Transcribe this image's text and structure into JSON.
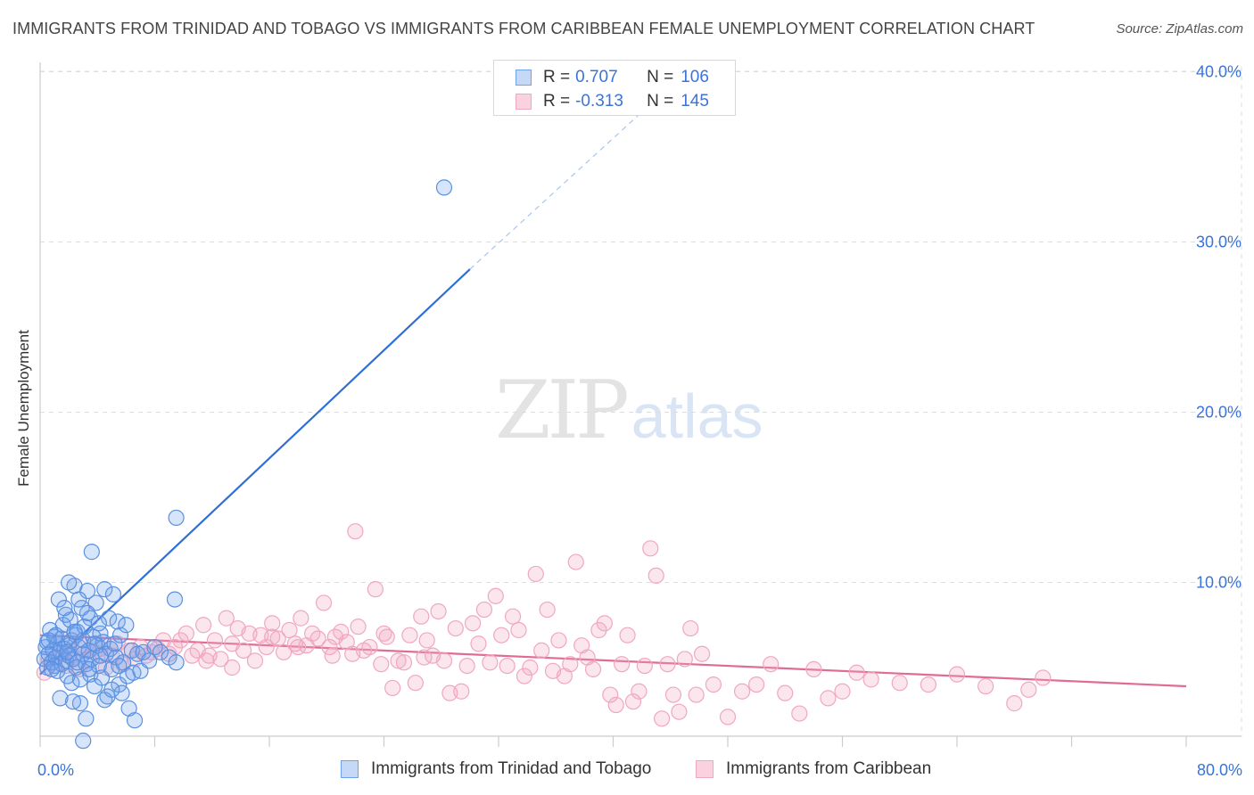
{
  "title": "IMMIGRANTS FROM TRINIDAD AND TOBAGO VS IMMIGRANTS FROM CARIBBEAN FEMALE UNEMPLOYMENT CORRELATION CHART",
  "source": "Source: ZipAtlas.com",
  "watermark": {
    "zip": "ZIP",
    "atlas": "atlas"
  },
  "legend": {
    "r_label": "R =",
    "n_label": "N =",
    "rows": [
      {
        "r": "0.707",
        "n": "106"
      },
      {
        "r": "-0.313",
        "n": "145"
      }
    ]
  },
  "chart_data": {
    "type": "scatter",
    "title": "IMMIGRANTS FROM TRINIDAD AND TOBAGO VS IMMIGRANTS FROM CARIBBEAN FEMALE UNEMPLOYMENT CORRELATION CHART",
    "xlabel": "",
    "ylabel": "Female Unemployment",
    "xlim": [
      0,
      80
    ],
    "ylim": [
      0,
      42
    ],
    "x_tick_labels": [
      "0.0%",
      "80.0%"
    ],
    "y_ticks": [
      10,
      20,
      30,
      40
    ],
    "y_tick_labels": [
      "10.0%",
      "20.0%",
      "30.0%",
      "40.0%"
    ],
    "grid": true,
    "legend_position": "top-center",
    "colors": {
      "series1": "#6fa2ec",
      "series2": "#f0a7c0",
      "line1": "#2e6fd6",
      "line2": "#e06b96"
    },
    "series": [
      {
        "name": "Immigrants from Trinidad and Tobago",
        "trend": {
          "x0": 0,
          "y0": 4.6,
          "x1": 30,
          "y1": 28.4,
          "dashed_to_x": 43,
          "dashed_to_y": 38.4
        },
        "points": [
          [
            0.3,
            5.5
          ],
          [
            0.4,
            6.2
          ],
          [
            0.5,
            5.0
          ],
          [
            0.5,
            6.5
          ],
          [
            0.6,
            5.8
          ],
          [
            0.7,
            7.2
          ],
          [
            0.8,
            5.3
          ],
          [
            0.9,
            6.0
          ],
          [
            1.0,
            6.8
          ],
          [
            1.0,
            5.1
          ],
          [
            1.1,
            5.6
          ],
          [
            1.2,
            6.4
          ],
          [
            1.2,
            4.8
          ],
          [
            1.3,
            9.0
          ],
          [
            1.4,
            5.9
          ],
          [
            1.5,
            6.7
          ],
          [
            1.5,
            5.2
          ],
          [
            1.6,
            7.5
          ],
          [
            1.7,
            6.1
          ],
          [
            1.8,
            5.4
          ],
          [
            1.8,
            8.1
          ],
          [
            1.9,
            4.5
          ],
          [
            2.0,
            6.3
          ],
          [
            2.0,
            5.7
          ],
          [
            2.1,
            7.8
          ],
          [
            2.2,
            6.6
          ],
          [
            2.2,
            4.1
          ],
          [
            2.3,
            5.5
          ],
          [
            2.4,
            9.8
          ],
          [
            2.5,
            6.9
          ],
          [
            2.5,
            5.0
          ],
          [
            2.6,
            7.1
          ],
          [
            2.7,
            6.2
          ],
          [
            2.8,
            4.3
          ],
          [
            2.9,
            8.5
          ],
          [
            3.0,
            5.8
          ],
          [
            3.0,
            6.6
          ],
          [
            3.1,
            7.4
          ],
          [
            3.2,
            5.2
          ],
          [
            3.3,
            9.5
          ],
          [
            3.4,
            6.0
          ],
          [
            3.5,
            4.6
          ],
          [
            3.5,
            7.9
          ],
          [
            3.6,
            5.5
          ],
          [
            3.7,
            6.8
          ],
          [
            3.8,
            3.9
          ],
          [
            3.9,
            8.8
          ],
          [
            4.0,
            6.3
          ],
          [
            4.1,
            5.1
          ],
          [
            4.2,
            7.0
          ],
          [
            4.3,
            4.4
          ],
          [
            4.4,
            6.5
          ],
          [
            4.5,
            9.6
          ],
          [
            4.6,
            5.8
          ],
          [
            4.7,
            3.3
          ],
          [
            4.8,
            7.9
          ],
          [
            4.9,
            6.1
          ],
          [
            5.0,
            4.9
          ],
          [
            5.1,
            9.3
          ],
          [
            5.2,
            6.4
          ],
          [
            5.3,
            5.6
          ],
          [
            5.4,
            7.7
          ],
          [
            5.5,
            4.0
          ],
          [
            5.6,
            6.9
          ],
          [
            5.7,
            3.5
          ],
          [
            5.8,
            5.3
          ],
          [
            6.0,
            7.5
          ],
          [
            6.1,
            4.5
          ],
          [
            6.2,
            2.6
          ],
          [
            6.4,
            6.0
          ],
          [
            6.5,
            4.7
          ],
          [
            6.6,
            1.9
          ],
          [
            6.8,
            5.8
          ],
          [
            7.0,
            4.8
          ],
          [
            7.2,
            5.9
          ],
          [
            7.6,
            5.4
          ],
          [
            8.0,
            6.2
          ],
          [
            8.4,
            5.9
          ],
          [
            9.0,
            5.6
          ],
          [
            9.4,
            9.0
          ],
          [
            9.5,
            5.3
          ],
          [
            9.5,
            13.8
          ],
          [
            3.6,
            11.8
          ],
          [
            3.2,
            2.0
          ],
          [
            2.8,
            2.9
          ],
          [
            3.0,
            0.7
          ],
          [
            2.3,
            3.0
          ],
          [
            4.5,
            3.1
          ],
          [
            5.0,
            3.7
          ],
          [
            1.4,
            3.2
          ],
          [
            2.0,
            10.0
          ],
          [
            2.7,
            9.0
          ],
          [
            1.7,
            8.5
          ],
          [
            3.8,
            6.4
          ],
          [
            0.8,
            4.9
          ],
          [
            1.1,
            6.9
          ],
          [
            2.4,
            7.1
          ],
          [
            3.3,
            8.2
          ],
          [
            4.1,
            7.6
          ],
          [
            0.6,
            6.6
          ],
          [
            1.9,
            5.9
          ],
          [
            2.6,
            5.3
          ],
          [
            3.4,
            4.9
          ],
          [
            4.2,
            5.7
          ],
          [
            5.5,
            5.1
          ],
          [
            28.2,
            33.2
          ]
        ]
      },
      {
        "name": "Immigrants from Caribbean",
        "trend": {
          "x0": 0,
          "y0": 6.9,
          "x1": 80,
          "y1": 3.9
        },
        "points": [
          [
            0.3,
            4.7
          ],
          [
            0.6,
            5.5
          ],
          [
            0.9,
            5.3
          ],
          [
            1.2,
            6.4
          ],
          [
            1.5,
            5.8
          ],
          [
            1.8,
            5.1
          ],
          [
            2.1,
            6.0
          ],
          [
            2.4,
            5.6
          ],
          [
            2.7,
            4.9
          ],
          [
            3.0,
            6.3
          ],
          [
            3.4,
            5.4
          ],
          [
            3.8,
            5.9
          ],
          [
            4.2,
            6.1
          ],
          [
            4.6,
            5.0
          ],
          [
            5.0,
            5.7
          ],
          [
            5.4,
            6.4
          ],
          [
            5.8,
            5.2
          ],
          [
            6.2,
            6.0
          ],
          [
            6.6,
            5.5
          ],
          [
            7.0,
            6.2
          ],
          [
            7.4,
            5.7
          ],
          [
            7.8,
            5.9
          ],
          [
            8.2,
            6.1
          ],
          [
            8.6,
            6.6
          ],
          [
            9.0,
            5.8
          ],
          [
            9.4,
            6.2
          ],
          [
            9.8,
            6.6
          ],
          [
            10.2,
            7.0
          ],
          [
            10.6,
            5.7
          ],
          [
            11.0,
            6.0
          ],
          [
            11.4,
            7.5
          ],
          [
            11.8,
            5.7
          ],
          [
            12.2,
            6.6
          ],
          [
            12.6,
            5.5
          ],
          [
            13.0,
            7.9
          ],
          [
            13.4,
            6.4
          ],
          [
            13.8,
            7.3
          ],
          [
            14.2,
            6.0
          ],
          [
            14.6,
            7.0
          ],
          [
            15.0,
            5.4
          ],
          [
            15.4,
            6.9
          ],
          [
            15.8,
            6.2
          ],
          [
            16.2,
            7.6
          ],
          [
            16.6,
            6.7
          ],
          [
            17.0,
            5.9
          ],
          [
            17.4,
            7.2
          ],
          [
            17.8,
            6.4
          ],
          [
            18.2,
            7.9
          ],
          [
            18.6,
            6.3
          ],
          [
            19.0,
            7.0
          ],
          [
            19.4,
            6.7
          ],
          [
            19.8,
            8.8
          ],
          [
            20.2,
            6.2
          ],
          [
            20.6,
            6.8
          ],
          [
            21.0,
            7.1
          ],
          [
            21.4,
            6.5
          ],
          [
            21.8,
            5.8
          ],
          [
            22.2,
            7.4
          ],
          [
            22.6,
            6.0
          ],
          [
            23.0,
            6.2
          ],
          [
            23.4,
            9.6
          ],
          [
            23.8,
            5.2
          ],
          [
            24.2,
            6.8
          ],
          [
            24.6,
            3.8
          ],
          [
            25.0,
            5.4
          ],
          [
            25.4,
            5.3
          ],
          [
            25.8,
            6.9
          ],
          [
            26.2,
            4.1
          ],
          [
            26.6,
            8.0
          ],
          [
            27.0,
            6.6
          ],
          [
            27.4,
            5.7
          ],
          [
            27.8,
            8.3
          ],
          [
            28.2,
            5.4
          ],
          [
            28.6,
            3.5
          ],
          [
            29.0,
            7.3
          ],
          [
            29.4,
            3.6
          ],
          [
            29.8,
            5.1
          ],
          [
            30.2,
            7.6
          ],
          [
            30.6,
            6.4
          ],
          [
            31.0,
            8.4
          ],
          [
            31.4,
            5.3
          ],
          [
            31.8,
            9.2
          ],
          [
            32.2,
            6.9
          ],
          [
            32.6,
            5.1
          ],
          [
            33.0,
            8.0
          ],
          [
            33.4,
            7.2
          ],
          [
            33.8,
            4.5
          ],
          [
            34.2,
            5.0
          ],
          [
            34.6,
            10.5
          ],
          [
            35.0,
            6.0
          ],
          [
            35.4,
            8.4
          ],
          [
            35.8,
            4.8
          ],
          [
            36.2,
            6.6
          ],
          [
            36.6,
            4.5
          ],
          [
            37.0,
            5.2
          ],
          [
            37.4,
            11.2
          ],
          [
            37.8,
            6.3
          ],
          [
            38.2,
            5.6
          ],
          [
            38.6,
            4.9
          ],
          [
            39.0,
            7.2
          ],
          [
            39.4,
            7.6
          ],
          [
            39.8,
            3.4
          ],
          [
            40.2,
            2.8
          ],
          [
            40.6,
            5.2
          ],
          [
            41.0,
            6.9
          ],
          [
            41.4,
            3.0
          ],
          [
            41.8,
            3.6
          ],
          [
            42.2,
            5.1
          ],
          [
            42.6,
            12.0
          ],
          [
            43.0,
            10.4
          ],
          [
            43.4,
            2.0
          ],
          [
            43.8,
            5.2
          ],
          [
            44.2,
            3.4
          ],
          [
            44.6,
            2.4
          ],
          [
            45.0,
            5.5
          ],
          [
            45.4,
            7.3
          ],
          [
            45.8,
            3.4
          ],
          [
            46.2,
            5.8
          ],
          [
            47.0,
            4.0
          ],
          [
            48.0,
            2.1
          ],
          [
            49.0,
            3.6
          ],
          [
            50.0,
            4.0
          ],
          [
            51.0,
            5.2
          ],
          [
            52.0,
            3.5
          ],
          [
            53.0,
            2.3
          ],
          [
            54.0,
            4.9
          ],
          [
            55.0,
            3.2
          ],
          [
            56.0,
            3.6
          ],
          [
            57.0,
            4.7
          ],
          [
            58.0,
            4.3
          ],
          [
            60.0,
            4.1
          ],
          [
            62.0,
            4.0
          ],
          [
            64.0,
            4.6
          ],
          [
            66.0,
            3.9
          ],
          [
            68.0,
            2.9
          ],
          [
            69.0,
            3.7
          ],
          [
            70.0,
            4.4
          ],
          [
            22.0,
            13.0
          ],
          [
            11.6,
            5.4
          ],
          [
            13.4,
            5.0
          ],
          [
            16.2,
            6.8
          ],
          [
            18.0,
            6.2
          ],
          [
            20.4,
            5.7
          ],
          [
            24.0,
            7.0
          ],
          [
            26.8,
            5.6
          ]
        ]
      }
    ]
  },
  "bottom_legend": [
    {
      "label": "Immigrants from Trinidad and Tobago"
    },
    {
      "label": "Immigrants from Caribbean"
    }
  ]
}
